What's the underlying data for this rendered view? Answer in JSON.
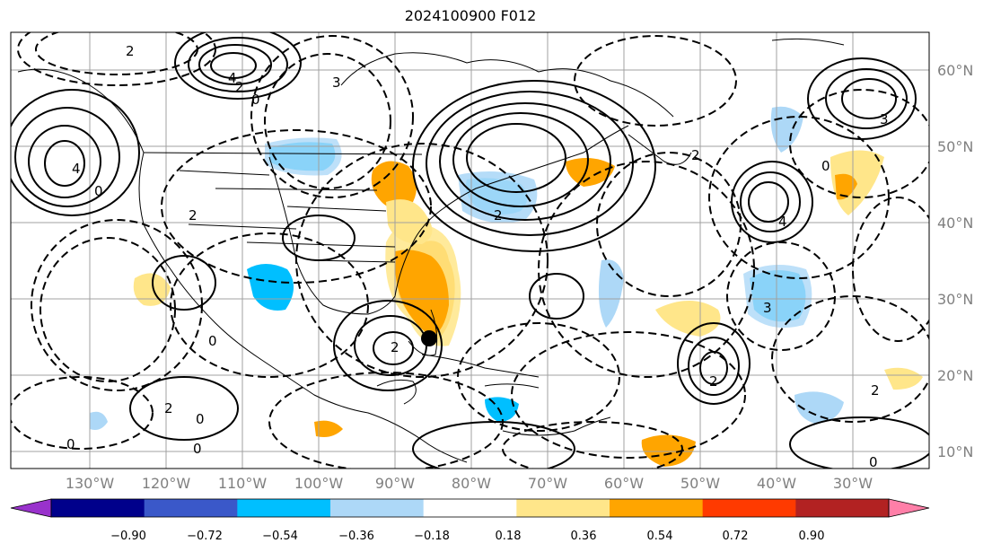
{
  "title": "2024100900 F012",
  "map": {
    "lat_labels": [
      "60°N",
      "50°N",
      "40°N",
      "30°N",
      "20°N",
      "10°N"
    ],
    "lon_labels": [
      "130°W",
      "120°W",
      "110°W",
      "100°W",
      "90°W",
      "80°W",
      "70°W",
      "60°W",
      "50°W",
      "40°W",
      "30°W"
    ],
    "contour_labels": [
      "2",
      "4",
      "2",
      "0",
      "3",
      "4",
      "2",
      "0",
      "2",
      "3",
      "0",
      "2",
      "4",
      "0",
      "3",
      "0",
      "2",
      "0",
      "2",
      "0",
      "2",
      "0",
      "2"
    ]
  },
  "colorbar": {
    "ticks": [
      "−0.90",
      "−0.72",
      "−0.54",
      "−0.36",
      "−0.18",
      "0.18",
      "0.36",
      "0.54",
      "0.72",
      "0.90"
    ],
    "colors": [
      "#9932cc",
      "#00008b",
      "#3a58c9",
      "#00bfff",
      "#add8f7",
      "#ffffff",
      "#ffe68a",
      "#ffa500",
      "#ff3a00",
      "#b22222",
      "#ff7fa8"
    ]
  }
}
